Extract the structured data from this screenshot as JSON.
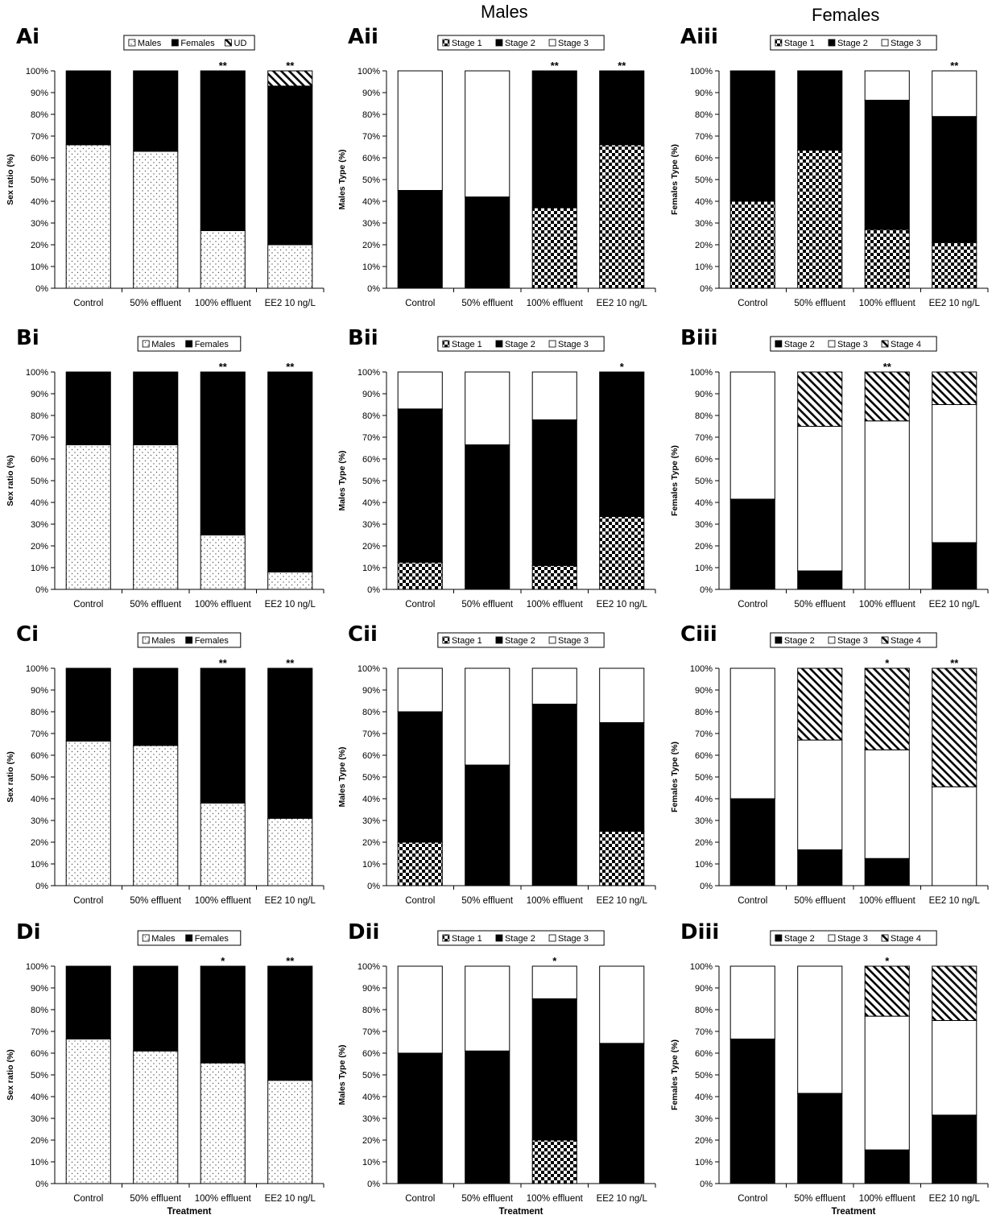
{
  "column_headers": {
    "males": "Males",
    "females": "Females"
  },
  "categories": [
    "Control",
    "50% effluent",
    "100% effluent",
    "EE2 10 ng/L"
  ],
  "y_ticks": [
    "0%",
    "10%",
    "20%",
    "30%",
    "40%",
    "50%",
    "60%",
    "70%",
    "80%",
    "90%",
    "100%"
  ],
  "pattern_colors": {
    "black": "#000000",
    "white": "#ffffff",
    "checker": "#000000",
    "dots": "#555555"
  },
  "chart_data": [
    {
      "id": "Ai",
      "panel": "Ai",
      "type": "bar",
      "stacked": true,
      "ylabel": "Sex ratio (%)",
      "xlabel": "",
      "ylim": [
        0,
        100
      ],
      "categories": [
        "Control",
        "50% effluent",
        "100% effluent",
        "EE2 10 ng/L"
      ],
      "series": [
        {
          "name": "Males",
          "pattern": "dots",
          "values": [
            66,
            63,
            26.5,
            20
          ]
        },
        {
          "name": "Females",
          "pattern": "black",
          "values": [
            34,
            37,
            73.5,
            73
          ]
        },
        {
          "name": "UD",
          "pattern": "hatch",
          "values": [
            0,
            0,
            0,
            7
          ]
        }
      ],
      "significance": [
        "",
        "",
        "**",
        "**"
      ]
    },
    {
      "id": "Aii",
      "panel": "Aii",
      "type": "bar",
      "stacked": true,
      "ylabel": "Males Type (%)",
      "xlabel": "",
      "ylim": [
        0,
        100
      ],
      "categories": [
        "Control",
        "50% effluent",
        "100% effluent",
        "EE2 10 ng/L"
      ],
      "series": [
        {
          "name": "Stage 1",
          "pattern": "checker",
          "values": [
            0,
            0,
            37,
            66
          ]
        },
        {
          "name": "Stage 2",
          "pattern": "black",
          "values": [
            45,
            42,
            63,
            34
          ]
        },
        {
          "name": "Stage 3",
          "pattern": "white",
          "values": [
            55,
            58,
            0,
            0
          ]
        }
      ],
      "significance": [
        "",
        "",
        "**",
        "**"
      ]
    },
    {
      "id": "Aiii",
      "panel": "Aiii",
      "type": "bar",
      "stacked": true,
      "ylabel": "Females Type (%)",
      "xlabel": "",
      "ylim": [
        0,
        100
      ],
      "categories": [
        "Control",
        "50% effluent",
        "100% effluent",
        "EE2 10 ng/L"
      ],
      "series": [
        {
          "name": "Stage 1",
          "pattern": "checker",
          "values": [
            40,
            63.5,
            27,
            21
          ]
        },
        {
          "name": "Stage 2",
          "pattern": "black",
          "values": [
            60,
            36.5,
            59.5,
            58
          ]
        },
        {
          "name": "Stage 3",
          "pattern": "white",
          "values": [
            0,
            0,
            13.5,
            21
          ]
        }
      ],
      "significance": [
        "",
        "",
        "",
        "**"
      ]
    },
    {
      "id": "Bi",
      "panel": "Bi",
      "type": "bar",
      "stacked": true,
      "ylabel": "Sex ratio (%)",
      "xlabel": "",
      "ylim": [
        0,
        100
      ],
      "categories": [
        "Control",
        "50% effluent",
        "100% effluent",
        "EE2 10 ng/L"
      ],
      "series": [
        {
          "name": "Males",
          "pattern": "dots",
          "values": [
            66.5,
            66.5,
            25,
            8
          ]
        },
        {
          "name": "Females",
          "pattern": "black",
          "values": [
            33.5,
            33.5,
            75,
            92
          ]
        }
      ],
      "significance": [
        "",
        "",
        "**",
        "**"
      ]
    },
    {
      "id": "Bii",
      "panel": "Bii",
      "type": "bar",
      "stacked": true,
      "ylabel": "Males Type (%)",
      "xlabel": "",
      "ylim": [
        0,
        100
      ],
      "categories": [
        "Control",
        "50% effluent",
        "100% effluent",
        "EE2 10 ng/L"
      ],
      "series": [
        {
          "name": "Stage 1",
          "pattern": "checker",
          "values": [
            12.5,
            0,
            11,
            33.5
          ]
        },
        {
          "name": "Stage 2",
          "pattern": "black",
          "values": [
            70.5,
            66.5,
            67,
            66.5
          ]
        },
        {
          "name": "Stage 3",
          "pattern": "white",
          "values": [
            17,
            33.5,
            22,
            0
          ]
        }
      ],
      "significance": [
        "",
        "",
        "",
        "*"
      ]
    },
    {
      "id": "Biii",
      "panel": "Biii",
      "type": "bar",
      "stacked": true,
      "ylabel": "Females Type (%)",
      "xlabel": "",
      "ylim": [
        0,
        100
      ],
      "categories": [
        "Control",
        "50% effluent",
        "100% effluent",
        "EE2 10 ng/L"
      ],
      "series": [
        {
          "name": "Stage 2",
          "pattern": "black",
          "values": [
            41.5,
            8.5,
            0,
            21.5
          ]
        },
        {
          "name": "Stage 3",
          "pattern": "white",
          "values": [
            58.5,
            66.5,
            77.5,
            63.5
          ]
        },
        {
          "name": "Stage 4",
          "pattern": "hatch",
          "values": [
            0,
            25,
            22.5,
            15
          ]
        }
      ],
      "significance": [
        "",
        "",
        "**",
        ""
      ]
    },
    {
      "id": "Ci",
      "panel": "Ci",
      "type": "bar",
      "stacked": true,
      "ylabel": "Sex ratio (%)",
      "xlabel": "",
      "ylim": [
        0,
        100
      ],
      "categories": [
        "Control",
        "50% effluent",
        "100% effluent",
        "EE2 10 ng/L"
      ],
      "series": [
        {
          "name": "Males",
          "pattern": "dots",
          "values": [
            66.5,
            64.5,
            38,
            31
          ]
        },
        {
          "name": "Females",
          "pattern": "black",
          "values": [
            33.5,
            35.5,
            62,
            69
          ]
        }
      ],
      "significance": [
        "",
        "",
        "**",
        "**"
      ]
    },
    {
      "id": "Cii",
      "panel": "Cii",
      "type": "bar",
      "stacked": true,
      "ylabel": "Males Type (%)",
      "xlabel": "",
      "ylim": [
        0,
        100
      ],
      "categories": [
        "Control",
        "50% effluent",
        "100% effluent",
        "EE2 10 ng/L"
      ],
      "series": [
        {
          "name": "Stage 1",
          "pattern": "checker",
          "values": [
            20,
            0,
            0,
            25
          ]
        },
        {
          "name": "Stage 2",
          "pattern": "black",
          "values": [
            60,
            55.5,
            83.5,
            50
          ]
        },
        {
          "name": "Stage 3",
          "pattern": "white",
          "values": [
            20,
            44.5,
            16.5,
            25
          ]
        }
      ],
      "significance": [
        "",
        "",
        "",
        ""
      ]
    },
    {
      "id": "Ciii",
      "panel": "Ciii",
      "type": "bar",
      "stacked": true,
      "ylabel": "Females Type (%)",
      "xlabel": "",
      "ylim": [
        0,
        100
      ],
      "categories": [
        "Control",
        "50% effluent",
        "100% effluent",
        "EE2 10 ng/L"
      ],
      "series": [
        {
          "name": "Stage 2",
          "pattern": "black",
          "values": [
            40,
            16.5,
            12.5,
            0
          ]
        },
        {
          "name": "Stage 3",
          "pattern": "white",
          "values": [
            60,
            50.5,
            50,
            45.5
          ]
        },
        {
          "name": "Stage 4",
          "pattern": "hatch",
          "values": [
            0,
            33,
            37.5,
            54.5
          ]
        }
      ],
      "significance": [
        "",
        "",
        "*",
        "**"
      ]
    },
    {
      "id": "Di",
      "panel": "Di",
      "type": "bar",
      "stacked": true,
      "ylabel": "Sex ratio (%)",
      "xlabel": "Treatment",
      "ylim": [
        0,
        100
      ],
      "categories": [
        "Control",
        "50% effluent",
        "100% effluent",
        "EE2 10 ng/L"
      ],
      "series": [
        {
          "name": "Males",
          "pattern": "dots",
          "values": [
            66.5,
            61,
            55.5,
            47.5
          ]
        },
        {
          "name": "Females",
          "pattern": "black",
          "values": [
            33.5,
            39,
            44.5,
            52.5
          ]
        }
      ],
      "significance": [
        "",
        "",
        "*",
        "**"
      ]
    },
    {
      "id": "Dii",
      "panel": "Dii",
      "type": "bar",
      "stacked": true,
      "ylabel": "Males Type (%)",
      "xlabel": "Treatment",
      "ylim": [
        0,
        100
      ],
      "categories": [
        "Control",
        "50% effluent",
        "100% effluent",
        "EE2 10 ng/L"
      ],
      "series": [
        {
          "name": "Stage 1",
          "pattern": "checker",
          "values": [
            0,
            0,
            20,
            0
          ]
        },
        {
          "name": "Stage 2",
          "pattern": "black",
          "values": [
            60,
            61,
            65,
            64.5
          ]
        },
        {
          "name": "Stage 3",
          "pattern": "white",
          "values": [
            40,
            39,
            15,
            35.5
          ]
        }
      ],
      "significance": [
        "",
        "",
        "*",
        ""
      ]
    },
    {
      "id": "Diii",
      "panel": "Diii",
      "type": "bar",
      "stacked": true,
      "ylabel": "Females Type (%)",
      "xlabel": "Treatment",
      "ylim": [
        0,
        100
      ],
      "categories": [
        "Control",
        "50% effluent",
        "100% effluent",
        "EE2 10 ng/L"
      ],
      "series": [
        {
          "name": "Stage 2",
          "pattern": "black",
          "values": [
            66.5,
            41.5,
            15.5,
            31.5
          ]
        },
        {
          "name": "Stage 3",
          "pattern": "white",
          "values": [
            33.5,
            58.5,
            61.5,
            43.5
          ]
        },
        {
          "name": "Stage 4",
          "pattern": "hatch",
          "values": [
            0,
            0,
            23,
            25
          ]
        }
      ],
      "significance": [
        "",
        "",
        "*",
        ""
      ]
    }
  ]
}
